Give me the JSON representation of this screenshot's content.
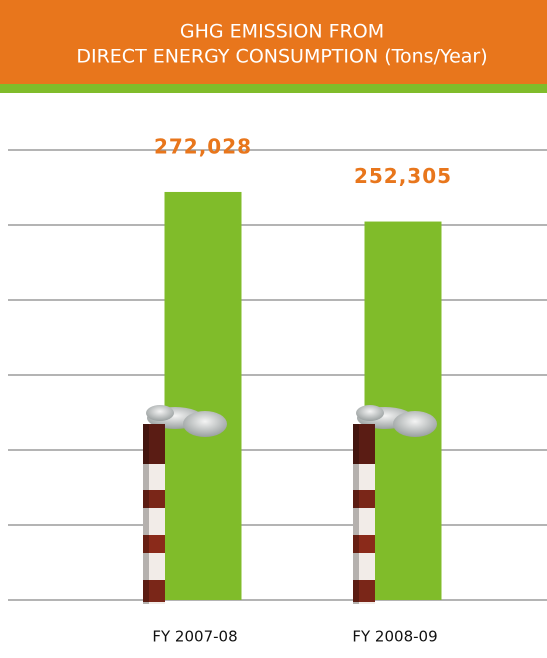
{
  "chart_data": {
    "type": "bar",
    "title": [
      "GHG EMISSION FROM",
      "DIRECT ENERGY CONSUMPTION (Tons/Year)"
    ],
    "categories": [
      "FY 2007-08",
      "FY 2008-09"
    ],
    "values": [
      272028,
      252305
    ],
    "value_labels": [
      "272,028",
      "252,305"
    ],
    "color": "#80bc2a",
    "ylim": [
      0,
      300000
    ],
    "yticks": [
      0,
      50000,
      100000,
      150000,
      200000,
      250000,
      300000
    ],
    "show_ytick_labels": false,
    "grid": true
  }
}
